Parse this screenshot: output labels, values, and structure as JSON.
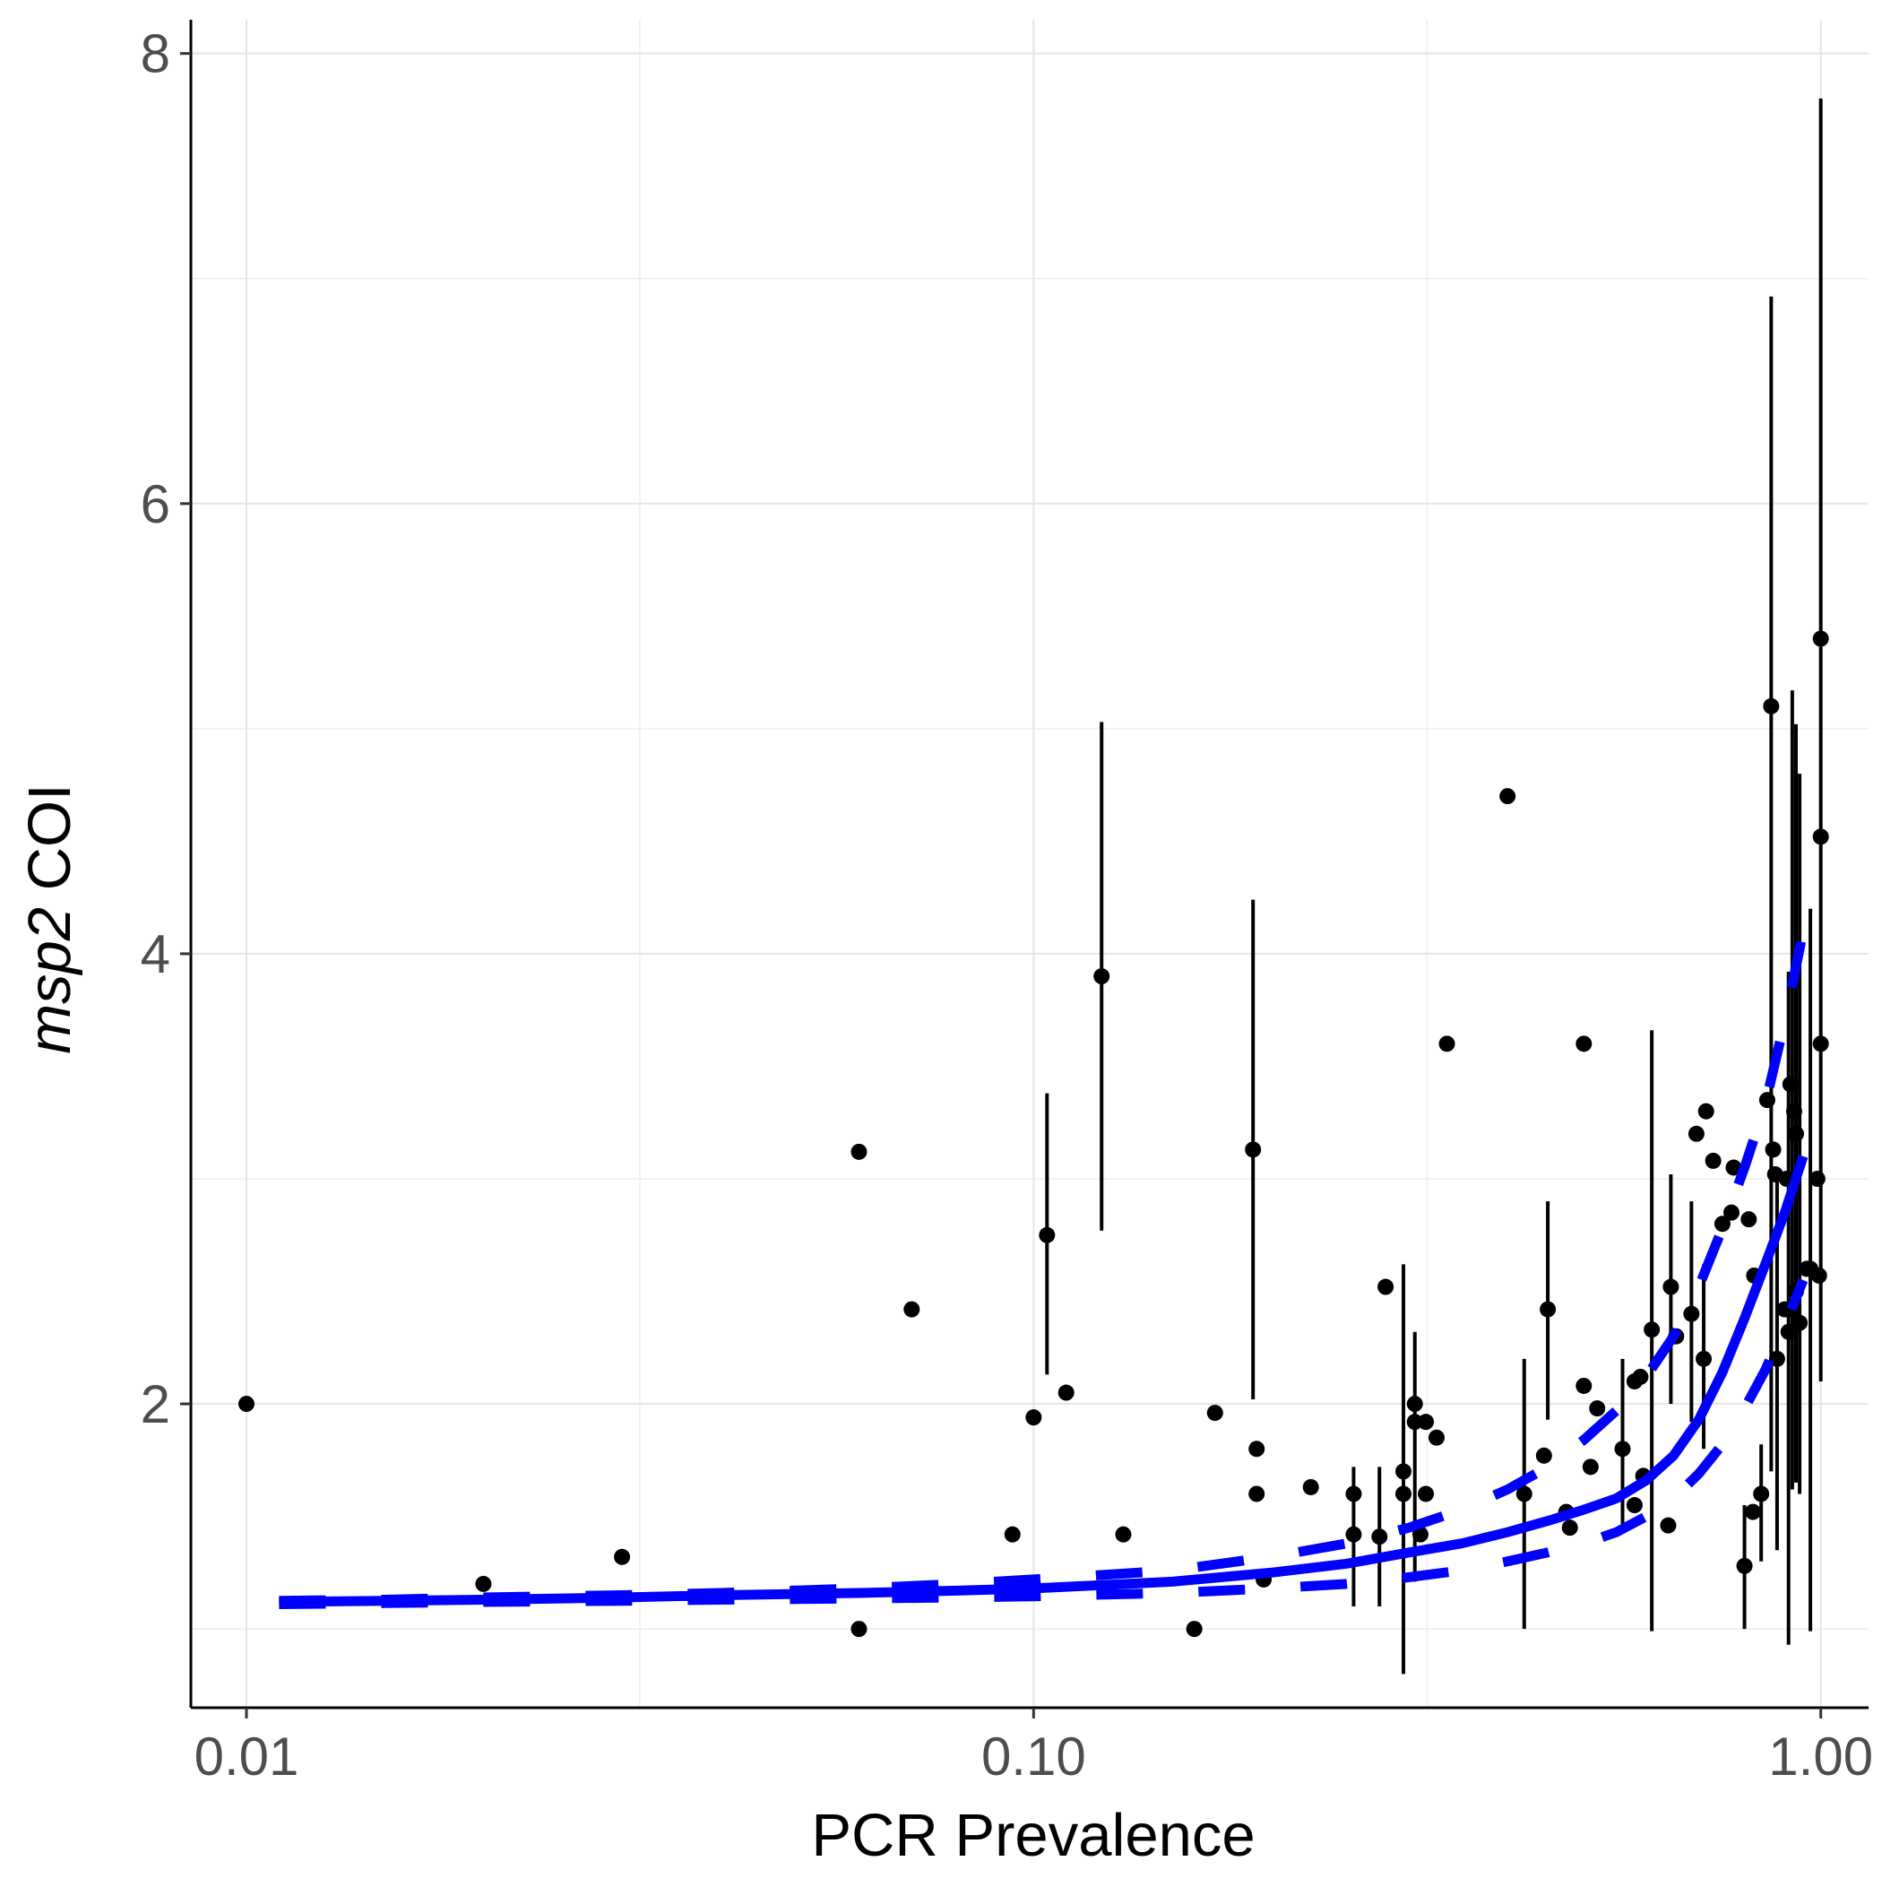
{
  "chart_data": {
    "type": "scatter",
    "xlabel": "PCR Prevalence",
    "ylabel": {
      "italic": "msp2",
      "rest": " COI"
    },
    "x_scale": "log10",
    "xlim": [
      0.0085,
      1.15
    ],
    "ylim": [
      0.65,
      8.15
    ],
    "x_ticks": [
      {
        "value": 0.01,
        "label": "0.01"
      },
      {
        "value": 0.1,
        "label": "0.10"
      },
      {
        "value": 1.0,
        "label": "1.00"
      }
    ],
    "x_minor_ticks": [
      0.0316,
      0.316
    ],
    "y_ticks": [
      {
        "value": 2,
        "label": "2"
      },
      {
        "value": 4,
        "label": "4"
      },
      {
        "value": 6,
        "label": "6"
      },
      {
        "value": 8,
        "label": "8"
      }
    ],
    "y_minor_ticks": [
      1,
      3,
      5,
      7
    ],
    "grid": true,
    "colors": {
      "points": "#000000",
      "fit": "#0000ff",
      "grid": "#e5e5e5"
    },
    "points": [
      {
        "x": 0.01,
        "y": 2.0
      },
      {
        "x": 0.02,
        "y": 1.2
      },
      {
        "x": 0.03,
        "y": 1.32
      },
      {
        "x": 0.06,
        "y": 3.12
      },
      {
        "x": 0.06,
        "y": 1.0
      },
      {
        "x": 0.07,
        "y": 2.42
      },
      {
        "x": 0.094,
        "y": 1.42
      },
      {
        "x": 0.1,
        "y": 1.94
      },
      {
        "x": 0.104,
        "y": 2.75,
        "lo": 2.13,
        "hi": 3.38
      },
      {
        "x": 0.11,
        "y": 2.05
      },
      {
        "x": 0.122,
        "y": 3.9,
        "lo": 2.77,
        "hi": 5.03
      },
      {
        "x": 0.13,
        "y": 1.42
      },
      {
        "x": 0.16,
        "y": 1.0
      },
      {
        "x": 0.17,
        "y": 1.96
      },
      {
        "x": 0.19,
        "y": 3.13,
        "lo": 2.02,
        "hi": 4.24
      },
      {
        "x": 0.192,
        "y": 1.8
      },
      {
        "x": 0.192,
        "y": 1.6
      },
      {
        "x": 0.196,
        "y": 1.22
      },
      {
        "x": 0.225,
        "y": 1.63
      },
      {
        "x": 0.255,
        "y": 1.6,
        "lo": 1.1,
        "hi": 1.72
      },
      {
        "x": 0.255,
        "y": 1.42
      },
      {
        "x": 0.275,
        "y": 1.41,
        "lo": 1.1,
        "hi": 1.72
      },
      {
        "x": 0.28,
        "y": 2.52
      },
      {
        "x": 0.295,
        "y": 1.6,
        "lo": 0.8,
        "hi": 2.62
      },
      {
        "x": 0.295,
        "y": 1.7
      },
      {
        "x": 0.305,
        "y": 2.0,
        "lo": 1.21,
        "hi": 2.32
      },
      {
        "x": 0.305,
        "y": 1.92
      },
      {
        "x": 0.31,
        "y": 1.42
      },
      {
        "x": 0.315,
        "y": 1.92
      },
      {
        "x": 0.315,
        "y": 1.6
      },
      {
        "x": 0.325,
        "y": 1.85
      },
      {
        "x": 0.335,
        "y": 3.6
      },
      {
        "x": 0.4,
        "y": 4.7
      },
      {
        "x": 0.42,
        "y": 1.6,
        "lo": 1.0,
        "hi": 2.2
      },
      {
        "x": 0.445,
        "y": 1.77
      },
      {
        "x": 0.45,
        "y": 2.42,
        "lo": 1.93,
        "hi": 2.9
      },
      {
        "x": 0.475,
        "y": 1.52
      },
      {
        "x": 0.48,
        "y": 1.45
      },
      {
        "x": 0.5,
        "y": 2.08
      },
      {
        "x": 0.5,
        "y": 3.6
      },
      {
        "x": 0.51,
        "y": 1.72
      },
      {
        "x": 0.52,
        "y": 1.98
      },
      {
        "x": 0.56,
        "y": 1.8,
        "lo": 1.43,
        "hi": 2.2
      },
      {
        "x": 0.58,
        "y": 2.1
      },
      {
        "x": 0.58,
        "y": 1.55
      },
      {
        "x": 0.59,
        "y": 2.12
      },
      {
        "x": 0.595,
        "y": 1.68
      },
      {
        "x": 0.61,
        "y": 2.33,
        "lo": 0.99,
        "hi": 3.66
      },
      {
        "x": 0.64,
        "y": 1.46
      },
      {
        "x": 0.645,
        "y": 2.52,
        "lo": 2.0,
        "hi": 3.02
      },
      {
        "x": 0.655,
        "y": 2.3
      },
      {
        "x": 0.685,
        "y": 2.4,
        "lo": 1.92,
        "hi": 2.9
      },
      {
        "x": 0.695,
        "y": 3.2
      },
      {
        "x": 0.71,
        "y": 2.2,
        "lo": 1.8,
        "hi": 2.62
      },
      {
        "x": 0.715,
        "y": 3.3
      },
      {
        "x": 0.73,
        "y": 3.08
      },
      {
        "x": 0.75,
        "y": 2.8
      },
      {
        "x": 0.77,
        "y": 2.85
      },
      {
        "x": 0.775,
        "y": 3.05
      },
      {
        "x": 0.8,
        "y": 1.28,
        "lo": 1.0,
        "hi": 1.55
      },
      {
        "x": 0.81,
        "y": 2.82
      },
      {
        "x": 0.82,
        "y": 1.52
      },
      {
        "x": 0.823,
        "y": 2.57
      },
      {
        "x": 0.84,
        "y": 1.6,
        "lo": 1.3,
        "hi": 1.82
      },
      {
        "x": 0.855,
        "y": 3.35
      },
      {
        "x": 0.865,
        "y": 5.1,
        "lo": 1.7,
        "hi": 6.92
      },
      {
        "x": 0.87,
        "y": 3.13
      },
      {
        "x": 0.875,
        "y": 3.02
      },
      {
        "x": 0.88,
        "y": 2.2,
        "lo": 1.35,
        "hi": 3.05
      },
      {
        "x": 0.9,
        "y": 2.42
      },
      {
        "x": 0.905,
        "y": 3.0
      },
      {
        "x": 0.91,
        "y": 2.32,
        "lo": 0.93,
        "hi": 3.92
      },
      {
        "x": 0.915,
        "y": 3.42
      },
      {
        "x": 0.92,
        "y": 2.42,
        "lo": 1.62,
        "hi": 5.17
      },
      {
        "x": 0.925,
        "y": 3.3
      },
      {
        "x": 0.93,
        "y": 2.5,
        "lo": 1.65,
        "hi": 5.02
      },
      {
        "x": 0.93,
        "y": 3.2
      },
      {
        "x": 0.94,
        "y": 2.36,
        "lo": 1.6,
        "hi": 4.8
      },
      {
        "x": 0.96,
        "y": 2.6
      },
      {
        "x": 0.97,
        "y": 2.6,
        "lo": 0.99,
        "hi": 4.2
      },
      {
        "x": 0.99,
        "y": 3.0
      },
      {
        "x": 0.995,
        "y": 2.57
      },
      {
        "x": 1.0,
        "y": 5.4,
        "lo": 2.1,
        "hi": 7.8
      },
      {
        "x": 1.0,
        "y": 4.52
      },
      {
        "x": 1.0,
        "y": 3.6
      }
    ],
    "fit": {
      "x": [
        0.011,
        0.015,
        0.02,
        0.03,
        0.04,
        0.06,
        0.08,
        0.1,
        0.15,
        0.2,
        0.25,
        0.3,
        0.35,
        0.4,
        0.45,
        0.5,
        0.55,
        0.6,
        0.65,
        0.7,
        0.75,
        0.8,
        0.85,
        0.9,
        0.95
      ],
      "y": [
        1.12,
        1.125,
        1.13,
        1.14,
        1.15,
        1.16,
        1.17,
        1.18,
        1.21,
        1.25,
        1.29,
        1.34,
        1.38,
        1.43,
        1.48,
        1.53,
        1.58,
        1.66,
        1.77,
        1.93,
        2.14,
        2.38,
        2.62,
        2.85,
        3.1
      ]
    },
    "fit_upper": {
      "x": [
        0.011,
        0.015,
        0.02,
        0.03,
        0.04,
        0.06,
        0.08,
        0.1,
        0.15,
        0.2,
        0.25,
        0.3,
        0.35,
        0.4,
        0.45,
        0.5,
        0.55,
        0.6,
        0.65,
        0.7,
        0.75,
        0.8,
        0.85,
        0.9,
        0.95
      ],
      "y": [
        1.125,
        1.13,
        1.14,
        1.15,
        1.16,
        1.18,
        1.2,
        1.22,
        1.26,
        1.32,
        1.38,
        1.45,
        1.53,
        1.62,
        1.72,
        1.84,
        1.97,
        2.12,
        2.3,
        2.52,
        2.78,
        3.05,
        3.33,
        3.7,
        4.1
      ]
    },
    "fit_lower": {
      "x": [
        0.011,
        0.015,
        0.02,
        0.03,
        0.04,
        0.06,
        0.08,
        0.1,
        0.15,
        0.2,
        0.25,
        0.3,
        0.35,
        0.4,
        0.45,
        0.5,
        0.55,
        0.6,
        0.65,
        0.7,
        0.75,
        0.8,
        0.85,
        0.9,
        0.95
      ],
      "y": [
        1.11,
        1.115,
        1.12,
        1.125,
        1.13,
        1.135,
        1.14,
        1.145,
        1.16,
        1.18,
        1.2,
        1.23,
        1.26,
        1.3,
        1.34,
        1.38,
        1.43,
        1.5,
        1.58,
        1.69,
        1.82,
        1.98,
        2.15,
        2.35,
        2.55
      ]
    }
  }
}
